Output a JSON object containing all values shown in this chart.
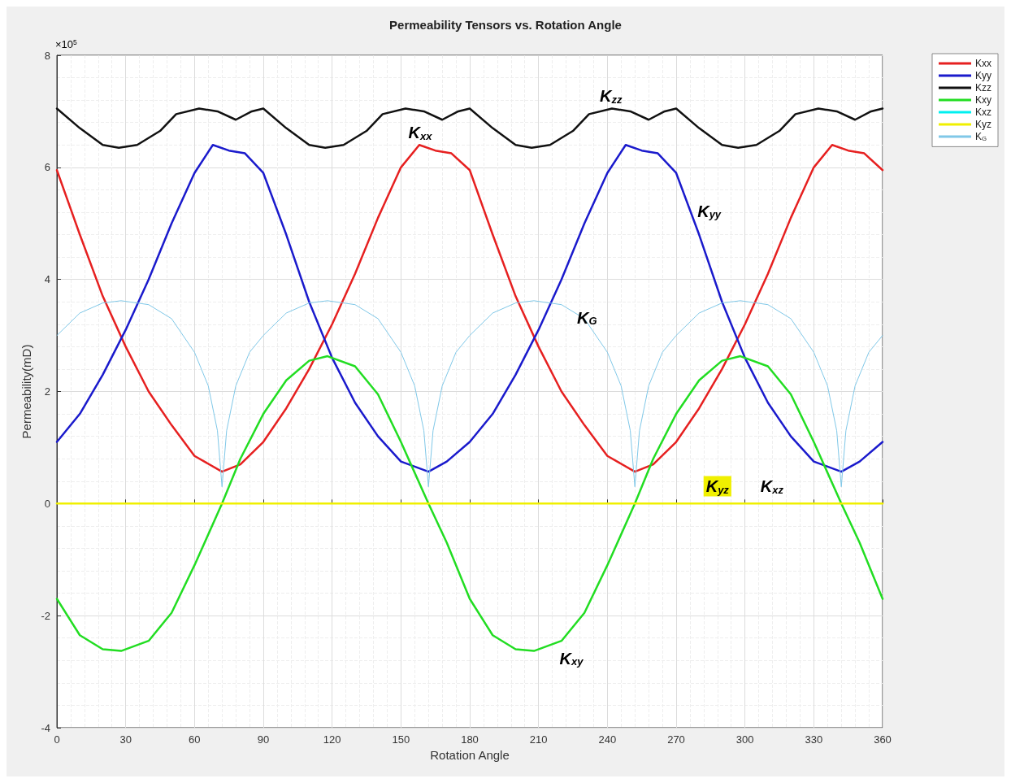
{
  "chart_data": {
    "type": "line",
    "title": "Permeability Tensors vs. Rotation Angle",
    "xlabel": "Rotation Angle",
    "ylabel": "Permeability(mD)",
    "xlim": [
      0,
      360
    ],
    "xticks": [
      0,
      30,
      60,
      90,
      120,
      150,
      180,
      210,
      240,
      270,
      300,
      330,
      360
    ],
    "ylim": [
      -4,
      8
    ],
    "yticks": [
      -4,
      -2,
      0,
      2,
      4,
      6,
      8
    ],
    "grid": true,
    "legend": "top right",
    "line_style": "solid",
    "marker": "none",
    "series": [
      {
        "name": "Kxx",
        "color": "#e62020",
        "x": [
          0,
          10,
          20,
          30,
          40,
          50,
          60,
          72,
          80,
          90,
          100,
          110,
          120,
          130,
          140,
          150,
          158,
          165,
          172,
          180,
          190,
          200,
          210,
          220,
          230,
          240,
          252,
          260,
          270,
          280,
          290,
          300,
          310,
          320,
          330,
          338,
          345,
          352,
          360
        ],
        "values": [
          5.95,
          4.8,
          3.7,
          2.8,
          2.0,
          1.4,
          0.85,
          0.57,
          0.7,
          1.1,
          1.7,
          2.4,
          3.2,
          4.1,
          5.1,
          6.0,
          6.4,
          6.3,
          6.25,
          5.95,
          4.8,
          3.7,
          2.8,
          2.0,
          1.4,
          0.85,
          0.57,
          0.7,
          1.1,
          1.7,
          2.4,
          3.2,
          4.1,
          5.1,
          6.0,
          6.4,
          6.3,
          6.25,
          5.95
        ]
      },
      {
        "name": "Kyy",
        "color": "#1a1acc",
        "x": [
          0,
          10,
          20,
          30,
          40,
          50,
          60,
          68,
          75,
          82,
          90,
          100,
          110,
          120,
          130,
          140,
          150,
          162,
          170,
          180,
          190,
          200,
          210,
          220,
          230,
          240,
          248,
          255,
          262,
          270,
          280,
          290,
          300,
          310,
          320,
          330,
          342,
          350,
          360
        ],
        "values": [
          1.1,
          1.6,
          2.3,
          3.1,
          4.0,
          5.0,
          5.9,
          6.4,
          6.3,
          6.25,
          5.9,
          4.8,
          3.6,
          2.6,
          1.8,
          1.2,
          0.75,
          0.57,
          0.75,
          1.1,
          1.6,
          2.3,
          3.1,
          4.0,
          5.0,
          5.9,
          6.4,
          6.3,
          6.25,
          5.9,
          4.8,
          3.6,
          2.6,
          1.8,
          1.2,
          0.75,
          0.57,
          0.75,
          1.1
        ]
      },
      {
        "name": "Kzz",
        "color": "#111111",
        "x": [
          0,
          10,
          20,
          27,
          35,
          45,
          52,
          62,
          70,
          78,
          85,
          90,
          100,
          110,
          117,
          125,
          135,
          142,
          152,
          160,
          168,
          175,
          180,
          190,
          200,
          207,
          215,
          225,
          232,
          242,
          250,
          258,
          265,
          270,
          280,
          290,
          297,
          305,
          315,
          322,
          332,
          340,
          348,
          355,
          360
        ],
        "values": [
          7.05,
          6.7,
          6.4,
          6.35,
          6.4,
          6.65,
          6.95,
          7.05,
          7.0,
          6.85,
          7.0,
          7.05,
          6.7,
          6.4,
          6.35,
          6.4,
          6.65,
          6.95,
          7.05,
          7.0,
          6.85,
          7.0,
          7.05,
          6.7,
          6.4,
          6.35,
          6.4,
          6.65,
          6.95,
          7.05,
          7.0,
          6.85,
          7.0,
          7.05,
          6.7,
          6.4,
          6.35,
          6.4,
          6.65,
          6.95,
          7.05,
          7.0,
          6.85,
          7.0,
          7.05
        ]
      },
      {
        "name": "Kxy",
        "color": "#22dd22",
        "x": [
          0,
          10,
          20,
          28,
          40,
          50,
          60,
          72,
          80,
          90,
          100,
          110,
          118,
          130,
          140,
          150,
          162,
          170,
          180,
          190,
          200,
          208,
          220,
          230,
          240,
          252,
          260,
          270,
          280,
          290,
          298,
          310,
          320,
          330,
          342,
          350,
          360
        ],
        "values": [
          -1.7,
          -2.35,
          -2.6,
          -2.63,
          -2.45,
          -1.95,
          -1.1,
          0,
          0.8,
          1.6,
          2.2,
          2.55,
          2.63,
          2.45,
          1.95,
          1.1,
          0,
          -0.7,
          -1.7,
          -2.35,
          -2.6,
          -2.63,
          -2.45,
          -1.95,
          -1.1,
          0,
          0.8,
          1.6,
          2.2,
          2.55,
          2.63,
          2.45,
          1.95,
          1.1,
          0,
          -0.7,
          -1.7
        ]
      },
      {
        "name": "Kxz",
        "color": "#00f0f0"
      },
      {
        "name": "Kyz",
        "color": "#f0f000",
        "x": [
          0,
          360
        ],
        "values": [
          0,
          0
        ]
      },
      {
        "name": "K$_{G}$",
        "color": "#80c8e8",
        "x": [
          0,
          10,
          20,
          28,
          40,
          50,
          60,
          66,
          70,
          72,
          74,
          78,
          84,
          90,
          100,
          110,
          118,
          130,
          140,
          150,
          156,
          160,
          162,
          164,
          168,
          174,
          180,
          190,
          200,
          208,
          220,
          230,
          240,
          246,
          250,
          252,
          254,
          258,
          264,
          270,
          280,
          290,
          298,
          310,
          320,
          330,
          336,
          340,
          342,
          344,
          348,
          354,
          360
        ],
        "values": [
          3.0,
          3.4,
          3.58,
          3.62,
          3.55,
          3.3,
          2.7,
          2.1,
          1.3,
          0.3,
          1.3,
          2.1,
          2.7,
          3.0,
          3.4,
          3.58,
          3.62,
          3.55,
          3.3,
          2.7,
          2.1,
          1.3,
          0.3,
          1.3,
          2.1,
          2.7,
          3.0,
          3.4,
          3.58,
          3.62,
          3.55,
          3.3,
          2.7,
          2.1,
          1.3,
          0.3,
          1.3,
          2.1,
          2.7,
          3.0,
          3.4,
          3.58,
          3.62,
          3.55,
          3.3,
          2.7,
          2.1,
          1.3,
          0.3,
          1.3,
          2.1,
          2.7,
          3.0
        ]
      }
    ],
    "annotations": [
      "K$_{xx}$",
      "K$_{yy}$",
      "K$_{zz}$",
      "K$_{xy}$",
      "K$_{xz}$",
      "K$_{yz}$",
      "K$_{G}$",
      "×10$^{5}$"
    ]
  }
}
